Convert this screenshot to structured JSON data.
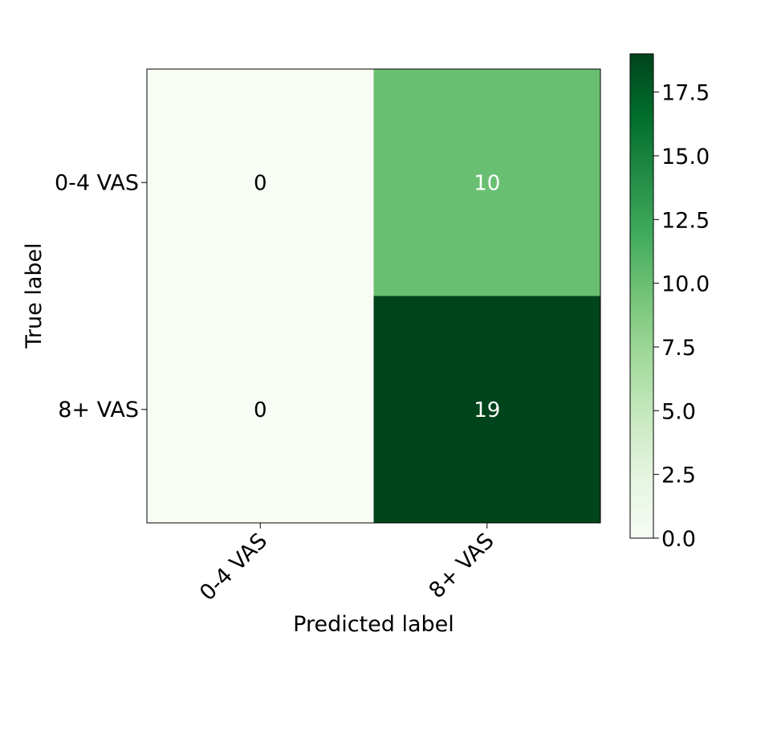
{
  "chart_data": {
    "type": "heatmap",
    "title": "",
    "xlabel": "Predicted label",
    "ylabel": "True label",
    "x_categories": [
      "0-4 VAS",
      "8+ VAS"
    ],
    "y_categories": [
      "0-4 VAS",
      "8+ VAS"
    ],
    "matrix": [
      [
        0,
        10
      ],
      [
        0,
        19
      ]
    ],
    "colorbar": {
      "range": [
        0,
        19
      ],
      "ticks": [
        0.0,
        2.5,
        5.0,
        7.5,
        10.0,
        12.5,
        15.0,
        17.5
      ],
      "tick_labels": [
        "0.0",
        "2.5",
        "5.0",
        "7.5",
        "10.0",
        "12.5",
        "15.0",
        "17.5"
      ],
      "colormap": "Greens",
      "color_stops": [
        "#f7fcf5",
        "#e5f5e0",
        "#c7e9c0",
        "#a1d99b",
        "#74c476",
        "#41ab5d",
        "#238b45",
        "#006d2c",
        "#00441b"
      ]
    },
    "grid": false
  }
}
